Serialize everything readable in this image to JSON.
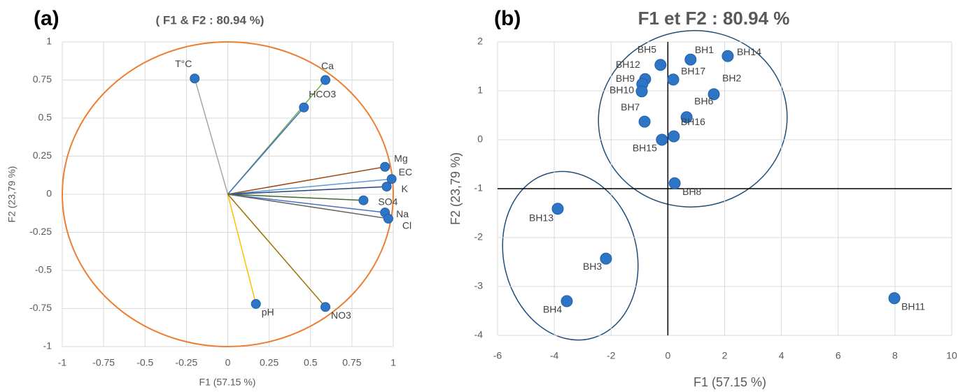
{
  "chart_data": [
    {
      "type": "scatter",
      "panel_label": "(a)",
      "title": "( F1 & F2 : 80.94 %)",
      "x_label": "F1 (57.15 %)",
      "y_label": "F2 (23,79 %)",
      "xlim": [
        -1,
        1
      ],
      "ylim": [
        -1,
        1
      ],
      "xticks": [
        -1,
        -0.75,
        -0.5,
        -0.25,
        0,
        0.25,
        0.5,
        0.75,
        1
      ],
      "yticks": [
        -1,
        -0.75,
        -0.5,
        -0.25,
        0,
        0.25,
        0.5,
        0.75,
        1
      ],
      "grid": true,
      "point_color": "#2e75c6",
      "labels": [
        "T°C",
        "Ca",
        "HCO3",
        "Mg",
        "EC",
        "K",
        "SO4",
        "Na",
        "Cl",
        "pH",
        "NO3"
      ],
      "x": [
        -0.2,
        0.59,
        0.46,
        0.95,
        0.99,
        0.96,
        0.82,
        0.95,
        0.97,
        0.17,
        0.59
      ],
      "y": [
        0.76,
        0.75,
        0.57,
        0.18,
        0.1,
        0.05,
        -0.04,
        -0.12,
        -0.16,
        -0.72,
        -0.74
      ],
      "vector_colors": [
        "#a5a5a5",
        "#70ad47",
        "#4472c4",
        "#9e480e",
        "#5b9bd5",
        "#264478",
        "#43682b",
        "#4472c4",
        "#636363",
        "#ffc000",
        "#997300"
      ],
      "circle": {
        "radius": 1,
        "color": "#ed7d31"
      }
    },
    {
      "type": "scatter",
      "panel_label": "(b)",
      "title": "F1 et F2 : 80.94 %",
      "x_label": "F1 (57.15 %)",
      "y_label": "F2 (23,79 %)",
      "xlim": [
        -6,
        10
      ],
      "ylim": [
        -4,
        2
      ],
      "xticks": [
        -6,
        -4,
        -2,
        0,
        2,
        4,
        6,
        8,
        10
      ],
      "yticks": [
        -4,
        -3,
        -2,
        -1,
        0,
        1,
        2
      ],
      "grid": true,
      "point_color": "#2e75c6",
      "labels": [
        "BH1",
        "BH14",
        "BH5",
        "BH12",
        "BH17",
        "BH9",
        "BH10",
        "BH2",
        "BH6",
        "BH7",
        "BH16",
        "BH15",
        "BH8",
        "BH13",
        "BH3",
        "BH4",
        "BH11"
      ],
      "x": [
        0.8,
        2.11,
        -0.26,
        -0.8,
        0.19,
        -0.9,
        -0.92,
        1.62,
        0.66,
        -0.82,
        0.21,
        -0.21,
        0.24,
        -3.88,
        -2.18,
        -3.56,
        7.98
      ],
      "y": [
        1.64,
        1.71,
        1.53,
        1.24,
        1.23,
        1.14,
        0.99,
        0.93,
        0.46,
        0.37,
        0.07,
        0.0,
        -0.89,
        -1.41,
        -2.43,
        -3.3,
        -3.24
      ],
      "reference_lines": {
        "x": 0,
        "y": -1
      }
    }
  ]
}
